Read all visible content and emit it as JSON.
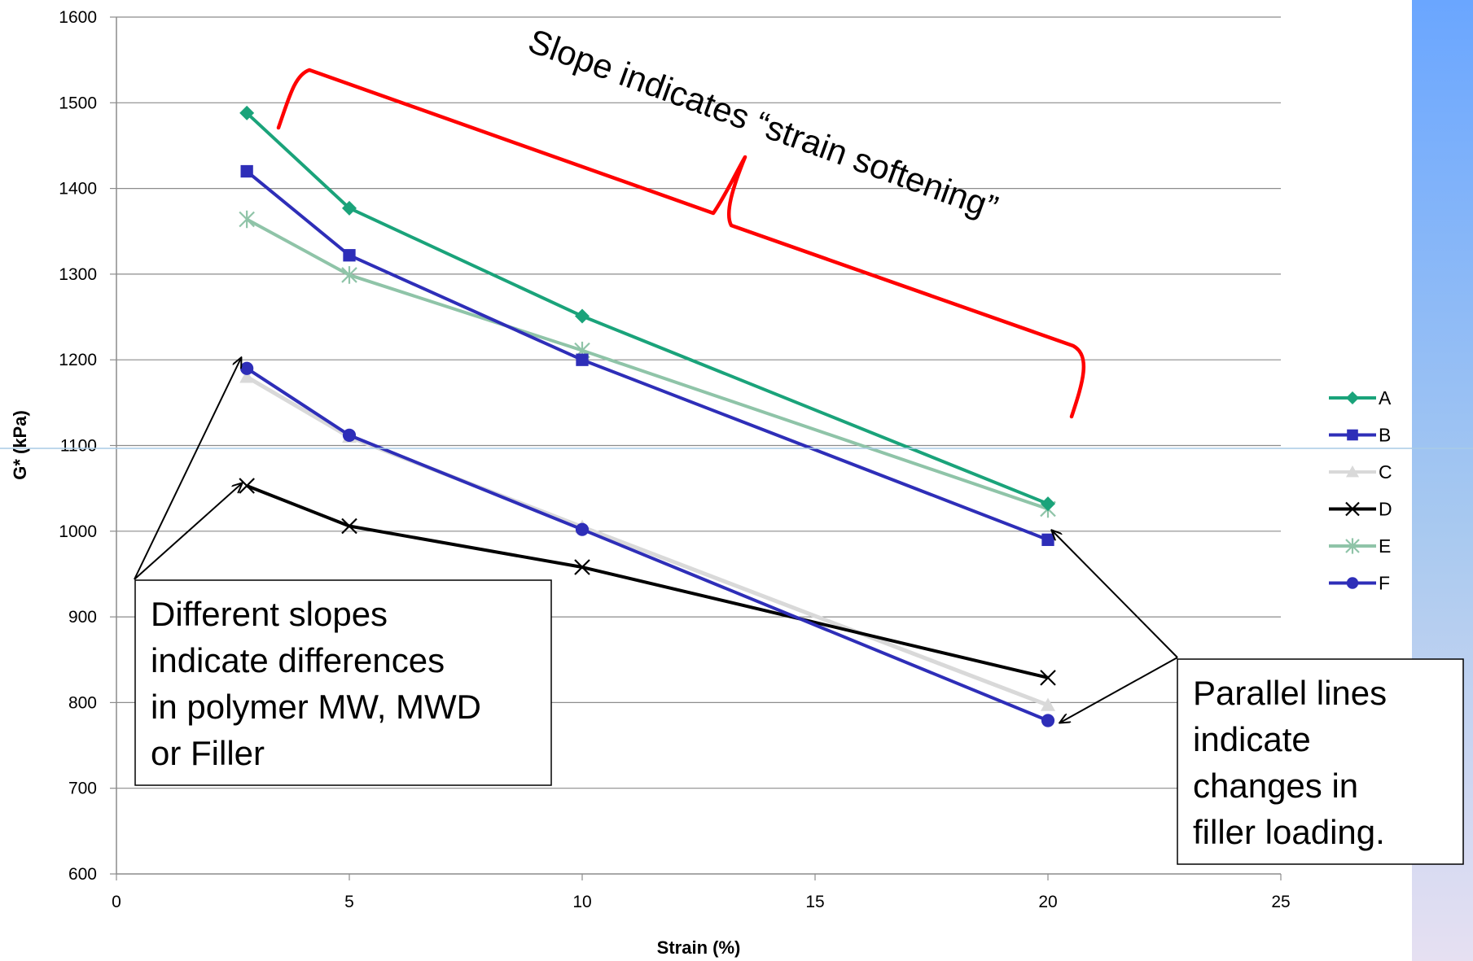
{
  "chart_data": {
    "type": "line",
    "xlabel": "Strain (%)",
    "ylabel": "G* (kPa)",
    "xlim": [
      0,
      25
    ],
    "ylim": [
      600,
      1600
    ],
    "x_ticks": [
      0,
      5,
      10,
      15,
      20,
      25
    ],
    "y_ticks": [
      600,
      700,
      800,
      900,
      1000,
      1100,
      1200,
      1300,
      1400,
      1500,
      1600
    ],
    "grid": true,
    "legend_position": "right",
    "series": [
      {
        "name": "A",
        "color": "#1aa37a",
        "marker": "diamond",
        "x": [
          2.8,
          5,
          10,
          20
        ],
        "y": [
          1488,
          1377,
          1251,
          1032
        ]
      },
      {
        "name": "B",
        "color": "#2e2eb8",
        "marker": "square",
        "x": [
          2.8,
          5,
          10,
          20
        ],
        "y": [
          1420,
          1322,
          1200,
          990
        ]
      },
      {
        "name": "C",
        "color": "#d9d9d9",
        "marker": "triangle",
        "x": [
          2.8,
          5,
          10,
          20
        ],
        "y": [
          1180,
          1110,
          1005,
          797
        ]
      },
      {
        "name": "D",
        "color": "#000000",
        "marker": "x",
        "x": [
          2.8,
          5,
          10,
          20
        ],
        "y": [
          1053,
          1006,
          958,
          829
        ]
      },
      {
        "name": "E",
        "color": "#8fc4a8",
        "marker": "star",
        "x": [
          2.8,
          5,
          10,
          20
        ],
        "y": [
          1364,
          1299,
          1211,
          1026
        ]
      },
      {
        "name": "F",
        "color": "#2e2eb8",
        "marker": "circle",
        "x": [
          2.8,
          5,
          10,
          20
        ],
        "y": [
          1190,
          1112,
          1002,
          779
        ]
      }
    ],
    "annotations": {
      "slope_text": "Slope indicates “strain softening”",
      "left_callout_lines": [
        "Different slopes",
        "indicate  differences",
        "in polymer MW, MWD",
        "or Filler"
      ],
      "right_callout_lines": [
        "Parallel lines",
        "indicate",
        "changes in",
        "filler loading."
      ]
    }
  }
}
